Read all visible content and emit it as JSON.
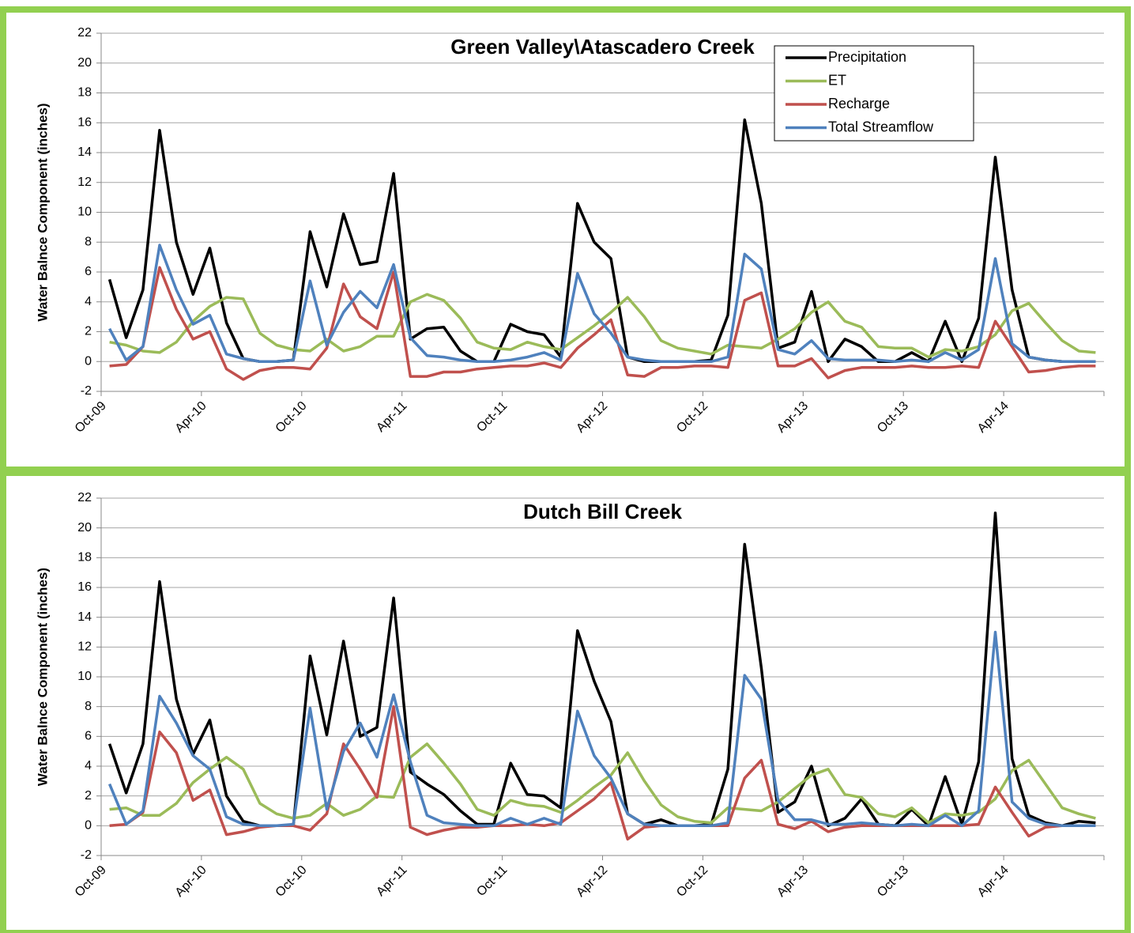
{
  "chart_data": [
    {
      "type": "line",
      "title": "Green Valley\\Atascadero Creek",
      "y_label": "Water Balnce Component (inches)",
      "categories": [
        "Oct-09",
        null,
        null,
        null,
        null,
        null,
        "Apr-10",
        null,
        null,
        null,
        null,
        null,
        "Oct-10",
        null,
        null,
        null,
        null,
        null,
        "Apr-11",
        null,
        null,
        null,
        null,
        null,
        "Oct-11",
        null,
        null,
        null,
        null,
        null,
        "Apr-12",
        null,
        null,
        null,
        null,
        null,
        "Oct-12",
        null,
        null,
        null,
        null,
        null,
        "Apr-13",
        null,
        null,
        null,
        null,
        null,
        "Oct-13",
        null,
        null,
        null,
        null,
        null,
        "Apr-14",
        null,
        null,
        null,
        null,
        null
      ],
      "ylim": [
        -2,
        22
      ],
      "yticks": [
        -2,
        0,
        2,
        4,
        6,
        8,
        10,
        12,
        14,
        16,
        18,
        20,
        22
      ],
      "grid": true,
      "legend": "upper right",
      "series": [
        {
          "name": "Precipitation",
          "color": "#000000",
          "values": [
            5.5,
            1.6,
            4.8,
            15.5,
            8.0,
            4.5,
            7.6,
            2.6,
            0.2,
            0,
            0,
            0.1,
            8.7,
            5.0,
            9.9,
            6.5,
            6.7,
            12.6,
            1.5,
            2.2,
            2.3,
            0.7,
            0,
            0,
            2.5,
            2.0,
            1.8,
            0.3,
            10.6,
            8.0,
            6.9,
            0.3,
            0,
            0,
            0,
            0,
            0.1,
            3.1,
            16.2,
            10.6,
            0.9,
            1.3,
            4.7,
            0,
            1.5,
            1.0,
            0,
            0,
            0.6,
            0,
            2.7,
            0,
            2.9,
            13.7,
            4.8,
            0.3,
            0.1,
            0,
            0,
            0
          ]
        },
        {
          "name": "ET",
          "color": "#9bbb59",
          "values": [
            1.3,
            1.1,
            0.7,
            0.6,
            1.3,
            2.7,
            3.7,
            4.3,
            4.2,
            1.9,
            1.1,
            0.8,
            0.7,
            1.5,
            0.7,
            1.0,
            1.7,
            1.7,
            4.0,
            4.5,
            4.1,
            2.9,
            1.3,
            0.9,
            0.8,
            1.3,
            1.0,
            0.8,
            1.6,
            2.4,
            3.3,
            4.3,
            3.0,
            1.4,
            0.9,
            0.7,
            0.5,
            1.1,
            1.0,
            0.9,
            1.5,
            2.2,
            3.3,
            4.0,
            2.7,
            2.3,
            1.0,
            0.9,
            0.9,
            0.3,
            0.8,
            0.7,
            1.0,
            1.8,
            3.4,
            3.9,
            2.6,
            1.4,
            0.7,
            0.6
          ]
        },
        {
          "name": "Recharge",
          "color": "#c0504d",
          "values": [
            -0.3,
            -0.2,
            1.0,
            6.3,
            3.5,
            1.5,
            2.0,
            -0.5,
            -1.2,
            -0.6,
            -0.4,
            -0.4,
            -0.5,
            0.9,
            5.2,
            3.0,
            2.2,
            6.0,
            -1.0,
            -1.0,
            -0.7,
            -0.7,
            -0.5,
            -0.4,
            -0.3,
            -0.3,
            -0.1,
            -0.4,
            0.9,
            1.8,
            2.8,
            -0.9,
            -1.0,
            -0.4,
            -0.4,
            -0.3,
            -0.3,
            -0.4,
            4.1,
            4.6,
            -0.3,
            -0.3,
            0.2,
            -1.1,
            -0.6,
            -0.4,
            -0.4,
            -0.4,
            -0.3,
            -0.4,
            -0.4,
            -0.3,
            -0.4,
            2.7,
            1.0,
            -0.7,
            -0.6,
            -0.4,
            -0.3,
            -0.3
          ]
        },
        {
          "name": "Total Streamflow",
          "color": "#4f81bd",
          "values": [
            2.2,
            0.1,
            1.0,
            7.8,
            4.8,
            2.5,
            3.1,
            0.5,
            0.2,
            0,
            0,
            0.1,
            5.4,
            1.1,
            3.3,
            4.7,
            3.6,
            6.5,
            1.6,
            0.4,
            0.3,
            0.1,
            0,
            0,
            0.1,
            0.3,
            0.6,
            0.1,
            5.9,
            3.2,
            1.9,
            0.3,
            0.1,
            0,
            0,
            0,
            0,
            0.3,
            7.2,
            6.2,
            0.8,
            0.5,
            1.4,
            0.2,
            0.1,
            0.1,
            0.1,
            0,
            0.1,
            0,
            0.6,
            0.1,
            0.8,
            6.9,
            1.2,
            0.3,
            0.1,
            0,
            0,
            0
          ]
        }
      ]
    },
    {
      "type": "line",
      "title": "Dutch Bill Creek",
      "y_label": "Water Balnce Component (inches)",
      "categories": [
        "Oct-09",
        null,
        null,
        null,
        null,
        null,
        "Apr-10",
        null,
        null,
        null,
        null,
        null,
        "Oct-10",
        null,
        null,
        null,
        null,
        null,
        "Apr-11",
        null,
        null,
        null,
        null,
        null,
        "Oct-11",
        null,
        null,
        null,
        null,
        null,
        "Apr-12",
        null,
        null,
        null,
        null,
        null,
        "Oct-12",
        null,
        null,
        null,
        null,
        null,
        "Apr-13",
        null,
        null,
        null,
        null,
        null,
        "Oct-13",
        null,
        null,
        null,
        null,
        null,
        "Apr-14",
        null,
        null,
        null,
        null,
        null
      ],
      "ylim": [
        -2,
        22
      ],
      "yticks": [
        -2,
        0,
        2,
        4,
        6,
        8,
        10,
        12,
        14,
        16,
        18,
        20,
        22
      ],
      "grid": true,
      "series": [
        {
          "color": "#000000",
          "values": [
            5.5,
            2.2,
            5.5,
            16.4,
            8.5,
            4.8,
            7.1,
            2.0,
            0.3,
            0,
            0,
            0,
            11.4,
            6.1,
            12.4,
            6.0,
            6.6,
            15.3,
            3.6,
            2.8,
            2.1,
            1.0,
            0.1,
            0.1,
            4.2,
            2.1,
            2.0,
            1.2,
            13.1,
            9.7,
            7.0,
            0.8,
            0.1,
            0.4,
            0,
            0,
            0.1,
            3.8,
            18.9,
            10.6,
            0.9,
            1.6,
            4.0,
            0,
            0.5,
            1.8,
            0.1,
            0,
            1.1,
            0,
            3.3,
            0.1,
            4.3,
            21.0,
            4.5,
            0.7,
            0.2,
            0,
            0.3,
            0.2
          ]
        },
        {
          "color": "#9bbb59",
          "values": [
            1.1,
            1.2,
            0.7,
            0.7,
            1.5,
            2.9,
            3.8,
            4.6,
            3.8,
            1.5,
            0.8,
            0.5,
            0.7,
            1.5,
            0.7,
            1.1,
            2.0,
            1.9,
            4.6,
            5.5,
            4.2,
            2.8,
            1.1,
            0.7,
            1.7,
            1.4,
            1.3,
            0.9,
            1.7,
            2.6,
            3.4,
            4.9,
            3.0,
            1.4,
            0.6,
            0.3,
            0.2,
            1.2,
            1.1,
            1.0,
            1.6,
            2.5,
            3.4,
            3.8,
            2.1,
            1.9,
            0.8,
            0.6,
            1.2,
            0.2,
            0.8,
            0.7,
            0.9,
            1.8,
            3.7,
            4.4,
            2.8,
            1.2,
            0.8,
            0.5
          ]
        },
        {
          "color": "#c0504d",
          "values": [
            0,
            0.1,
            0.9,
            6.3,
            4.9,
            1.7,
            2.4,
            -0.6,
            -0.4,
            -0.1,
            0,
            0,
            -0.3,
            0.8,
            5.5,
            3.8,
            1.9,
            8.0,
            -0.1,
            -0.6,
            -0.3,
            -0.1,
            -0.1,
            0,
            0,
            0.1,
            0,
            0.2,
            1.0,
            1.8,
            2.9,
            -0.9,
            -0.1,
            0,
            0,
            0,
            0,
            0,
            3.2,
            4.4,
            0.1,
            -0.2,
            0.3,
            -0.4,
            -0.1,
            0,
            0,
            0,
            0,
            0,
            0,
            0,
            0.1,
            2.6,
            0.9,
            -0.7,
            -0.1,
            0,
            0,
            0
          ]
        },
        {
          "color": "#4f81bd",
          "values": [
            2.8,
            0.1,
            1.0,
            8.7,
            6.9,
            4.7,
            3.8,
            0.6,
            0.1,
            0,
            0,
            0.1,
            7.9,
            1.1,
            5.0,
            6.9,
            4.6,
            8.8,
            4.3,
            0.7,
            0.2,
            0.1,
            0,
            0,
            0.5,
            0.1,
            0.5,
            0.1,
            7.7,
            4.7,
            3.2,
            0.8,
            0.1,
            0,
            0,
            0,
            0,
            0.2,
            10.1,
            8.5,
            1.7,
            0.4,
            0.4,
            0.1,
            0.1,
            0.2,
            0.1,
            0,
            0.1,
            0,
            0.7,
            0,
            1.0,
            13.0,
            1.6,
            0.5,
            0.1,
            0,
            0,
            0
          ]
        }
      ]
    }
  ]
}
